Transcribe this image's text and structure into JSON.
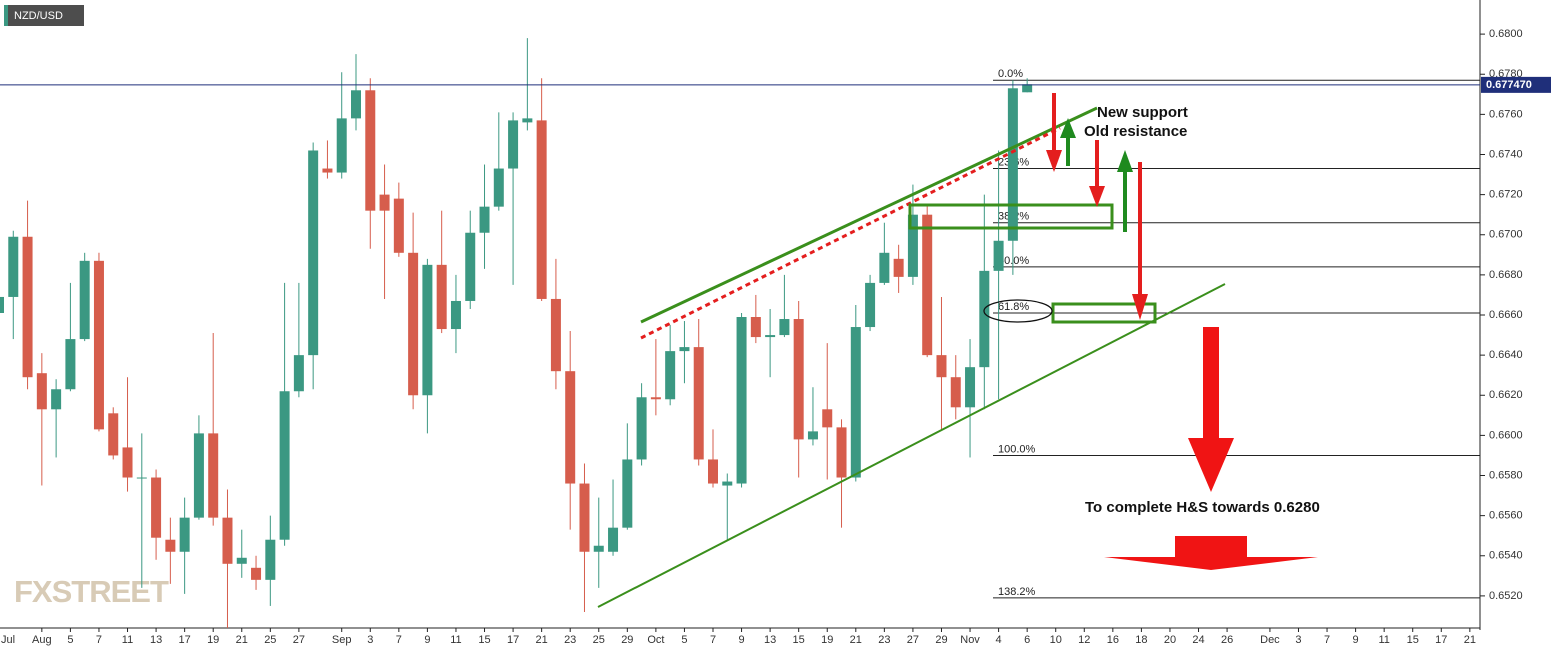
{
  "chart_data": {
    "type": "candlestick",
    "title": "NZD/USD",
    "watermark": "FXSTREET",
    "annotations": [
      "New support",
      "Old resistance",
      "To complete H&S towards 0.6280"
    ],
    "categories": [
      "Jul",
      null,
      null,
      "Aug",
      null,
      "5",
      null,
      "7",
      null,
      "11",
      null,
      "13",
      null,
      "17",
      null,
      "19",
      null,
      "21",
      null,
      "25",
      null,
      "27",
      null,
      null,
      "Sep",
      null,
      "3",
      null,
      "7",
      null,
      "9",
      null,
      "11",
      null,
      "15",
      null,
      "17",
      null,
      "21",
      null,
      "23",
      null,
      "25",
      null,
      "29",
      null,
      "Oct",
      null,
      "5",
      null,
      "7",
      null,
      "9",
      null,
      "13",
      null,
      "15",
      null,
      "19",
      null,
      "21",
      null,
      "23",
      null,
      "27",
      null,
      "29",
      null,
      "Nov",
      null,
      "4",
      null,
      "6",
      null,
      "10",
      null,
      "12",
      null,
      "16",
      null,
      "18",
      null,
      "20",
      null,
      "24",
      null,
      "26",
      null,
      null,
      "Dec",
      null,
      "3",
      null,
      "7",
      null,
      "9",
      null,
      "11",
      null,
      "15",
      null,
      "17",
      null,
      "21"
    ],
    "open": [
      0.6661,
      0.6669,
      0.6699,
      0.6631,
      0.6613,
      0.6623,
      0.6648,
      0.6687,
      0.6611,
      0.6594,
      0.6579,
      0.6579,
      0.6548,
      0.6542,
      0.6559,
      0.6601,
      0.6559,
      0.6536,
      0.6534,
      0.6528,
      0.6548,
      0.6622,
      0.664,
      0.6733,
      0.6731,
      0.6758,
      0.6772,
      0.672,
      0.6718,
      0.6691,
      0.662,
      0.6685,
      0.6653,
      0.6667,
      0.6701,
      0.6714,
      0.6733,
      0.6756,
      0.6757,
      0.6668,
      0.6632,
      0.6576,
      0.6542,
      0.6542,
      0.6554,
      0.6588,
      0.6619,
      0.6618,
      0.6642,
      0.6644,
      0.6588,
      0.6575,
      0.6576,
      0.6659,
      0.6649,
      0.665,
      0.6658,
      0.6598,
      0.6613,
      0.6604,
      0.6579,
      0.6654,
      0.6676,
      0.6688,
      0.6679,
      0.671,
      0.664,
      0.6629,
      0.6614,
      0.6634,
      0.6682,
      0.6697,
      0.6771,
      null,
      null,
      null,
      null,
      null,
      null,
      null,
      null,
      null,
      null,
      null,
      null,
      null,
      null,
      null,
      null,
      null,
      null,
      null,
      null,
      null,
      null,
      null,
      null,
      null,
      null,
      null,
      null,
      null,
      null,
      null
    ],
    "high": [
      0.6677,
      0.6702,
      0.6717,
      0.6641,
      0.6628,
      0.6676,
      0.6691,
      0.6691,
      0.6614,
      0.6629,
      0.6601,
      0.6583,
      0.6559,
      0.6569,
      0.661,
      0.6651,
      0.6573,
      0.6553,
      0.654,
      0.656,
      0.6676,
      0.6676,
      0.6746,
      0.6747,
      0.6781,
      0.679,
      0.6778,
      0.6735,
      0.6726,
      0.6711,
      0.6688,
      0.6712,
      0.668,
      0.6712,
      0.6735,
      0.6761,
      0.6761,
      0.6798,
      0.6778,
      0.6688,
      0.6652,
      0.6586,
      0.6569,
      0.6578,
      0.6606,
      0.6626,
      0.6648,
      0.6655,
      0.6657,
      0.6658,
      0.6603,
      0.6581,
      0.6661,
      0.667,
      0.6663,
      0.668,
      0.6667,
      0.6624,
      0.6646,
      0.6608,
      0.6665,
      0.668,
      0.6706,
      0.6695,
      0.6725,
      0.6715,
      0.6669,
      0.664,
      0.6648,
      0.672,
      0.6742,
      0.6777,
      0.6778,
      null,
      null,
      null,
      null,
      null,
      null,
      null,
      null,
      null,
      null,
      null,
      null,
      null,
      null,
      null,
      null,
      null,
      null,
      null,
      null,
      null,
      null,
      null,
      null,
      null,
      null,
      null,
      null,
      null,
      null,
      null
    ],
    "low": [
      0.664,
      0.6648,
      0.6623,
      0.6575,
      0.6589,
      0.6622,
      0.6647,
      0.6602,
      0.6588,
      0.6572,
      0.6524,
      0.6538,
      0.6526,
      0.6521,
      0.6558,
      0.6555,
      0.6504,
      0.6529,
      0.6523,
      0.6515,
      0.6545,
      0.6619,
      0.6623,
      0.6728,
      0.6728,
      0.6752,
      0.6693,
      0.6668,
      0.6689,
      0.6613,
      0.6601,
      0.6651,
      0.6641,
      0.6663,
      0.6683,
      0.6712,
      0.6675,
      0.6752,
      0.6667,
      0.6623,
      0.6553,
      0.6512,
      0.6524,
      0.654,
      0.6553,
      0.6585,
      0.661,
      0.6615,
      0.6626,
      0.6585,
      0.6574,
      0.6548,
      0.6574,
      0.6646,
      0.6629,
      0.6649,
      0.6579,
      0.6595,
      0.6578,
      0.6554,
      0.6577,
      0.6652,
      0.6675,
      0.6671,
      0.6675,
      0.6639,
      0.6603,
      0.6608,
      0.6589,
      0.6613,
      0.6618,
      0.668,
      0.6771,
      null,
      null,
      null,
      null,
      null,
      null,
      null,
      null,
      null,
      null,
      null,
      null,
      null,
      null,
      null,
      null,
      null,
      null,
      null,
      null,
      null,
      null,
      null,
      null,
      null,
      null,
      null,
      null,
      null,
      null,
      null
    ],
    "close": [
      0.6669,
      0.6699,
      0.6629,
      0.6613,
      0.6623,
      0.6648,
      0.6687,
      0.6603,
      0.659,
      0.6579,
      0.6579,
      0.6549,
      0.6542,
      0.6559,
      0.6601,
      0.6559,
      0.6536,
      0.6539,
      0.6528,
      0.6548,
      0.6622,
      0.664,
      0.6742,
      0.6731,
      0.6758,
      0.6772,
      0.6712,
      0.6712,
      0.6691,
      0.662,
      0.6685,
      0.6653,
      0.6667,
      0.6701,
      0.6714,
      0.6733,
      0.6757,
      0.6758,
      0.6668,
      0.6632,
      0.6576,
      0.6542,
      0.6545,
      0.6554,
      0.6588,
      0.6619,
      0.6618,
      0.6642,
      0.6644,
      0.6588,
      0.6576,
      0.6577,
      0.6659,
      0.6649,
      0.665,
      0.6658,
      0.6598,
      0.6602,
      0.6604,
      0.6579,
      0.6654,
      0.6676,
      0.6691,
      0.6679,
      0.671,
      0.664,
      0.6629,
      0.6614,
      0.6634,
      0.6682,
      0.6697,
      0.6773,
      0.6775,
      null,
      null,
      null,
      null,
      null,
      null,
      null,
      null,
      null,
      null,
      null,
      null,
      null,
      null,
      null,
      null,
      null,
      null,
      null,
      null,
      null,
      null,
      null,
      null,
      null,
      null,
      null,
      null,
      null,
      null,
      null
    ],
    "up_color": "#3b9882",
    "down_color": "#d65d4c",
    "ylim": [
      0.6504,
      0.6817
    ],
    "yticks": [
      {
        "value": 0.652,
        "label": "0.6520"
      },
      {
        "value": 0.654,
        "label": "0.6540"
      },
      {
        "value": 0.656,
        "label": "0.6560"
      },
      {
        "value": 0.658,
        "label": "0.6580"
      },
      {
        "value": 0.66,
        "label": "0.6600"
      },
      {
        "value": 0.662,
        "label": "0.6620"
      },
      {
        "value": 0.664,
        "label": "0.6640"
      },
      {
        "value": 0.666,
        "label": "0.6660"
      },
      {
        "value": 0.668,
        "label": "0.6680"
      },
      {
        "value": 0.67,
        "label": "0.6700"
      },
      {
        "value": 0.672,
        "label": "0.6720"
      },
      {
        "value": 0.674,
        "label": "0.6740"
      },
      {
        "value": 0.676,
        "label": "0.6760"
      },
      {
        "value": 0.678,
        "label": "0.6780"
      },
      {
        "value": 0.68,
        "label": "0.6800"
      }
    ],
    "grid": false,
    "last_price": {
      "value": 0.67747,
      "label": "0.677470",
      "color": "#1f2f7a"
    },
    "fib_levels": [
      {
        "name": "0.0%",
        "price": 0.6777
      },
      {
        "name": "23.6%",
        "price": 0.6733
      },
      {
        "name": "38.2%",
        "price": 0.6706
      },
      {
        "name": "50.0%",
        "price": 0.6684
      },
      {
        "name": "61.8%",
        "price": 0.6661
      },
      {
        "name": "100.0%",
        "price": 0.659
      },
      {
        "name": "138.2%",
        "price": 0.6519
      }
    ]
  }
}
